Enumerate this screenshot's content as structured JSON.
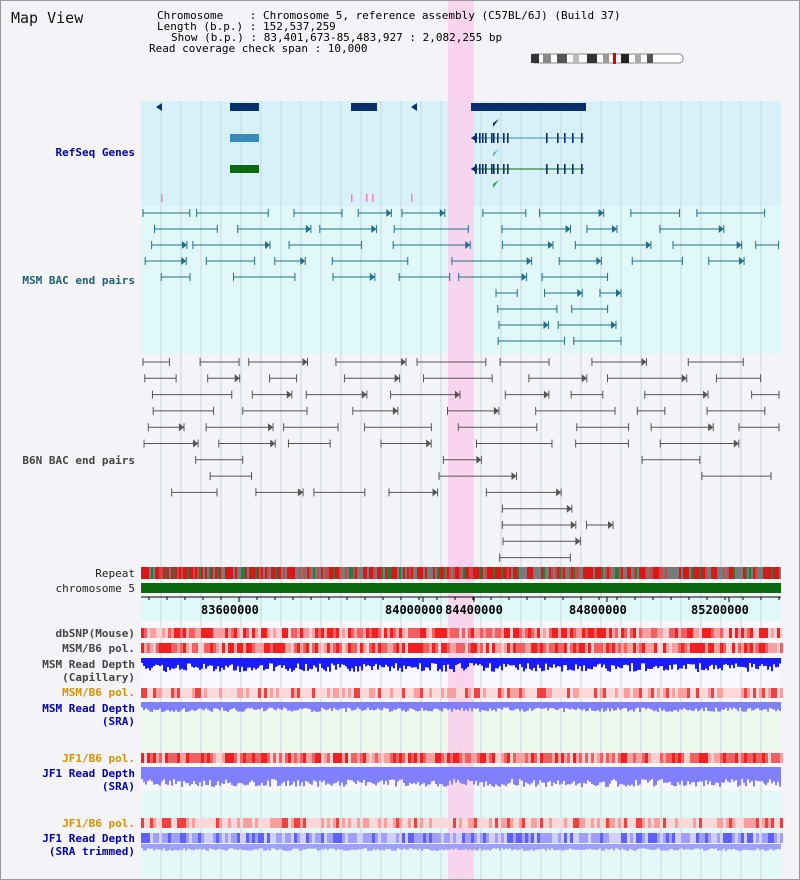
{
  "window": {
    "title": "Map View"
  },
  "info": {
    "chromosome": "Chromosome    : Chromosome 5, reference assembly (C57BL/6J) (Build 37)",
    "length": "Length (b.p.) : 152,537,259",
    "show": "Show (b.p.) : 83,401,673-85,483,927 : 2,082,255 bp",
    "span": "Read coverage check span : 10,000"
  },
  "tracks": {
    "refseq": "RefSeq Genes",
    "msm_bac": "MSM BAC end pairs",
    "b6n_bac": "B6N BAC end pairs",
    "repeat": "Repeat",
    "chromosome": "chromosome 5",
    "dbsnp": "dbSNP(Mouse)",
    "msm_b6_pol_1": "MSM/B6 pol.",
    "msm_read_depth_cap_1": "MSM Read Depth",
    "msm_read_depth_cap_2": "(Capillary)",
    "msm_b6_pol_2": "MSM/B6 pol.",
    "msm_read_depth_sra_1": "MSM Read Depth",
    "msm_read_depth_sra_2": "(SRA)",
    "jf1_b6_pol_1": "JF1/B6 pol.",
    "jf1_read_depth_sra_1": "JF1 Read Depth",
    "jf1_read_depth_sra_2": "(SRA)",
    "jf1_b6_pol_2": "JF1/B6 pol.",
    "jf1_read_depth_trim_1": "JF1 Read Depth",
    "jf1_read_depth_trim_2": "(SRA trimmed)"
  },
  "axis": {
    "ticks": [
      "83600000",
      "84000000",
      "84400000",
      "84800000",
      "85200000"
    ]
  },
  "colors": {
    "highlight": "#f8d0ec",
    "refseq_bg": "#d8f0f8",
    "msm_bg": "#e0f8f8",
    "b6n_bg": "#f4f4f8",
    "gene_dark": "#0a2f6a",
    "gene_mid": "#3a8ab8",
    "gene_green": "#0a6a10",
    "chromosome": "#0a6a10",
    "depth_blue": "#1a1aff",
    "depth_light": "#8080ff"
  }
}
